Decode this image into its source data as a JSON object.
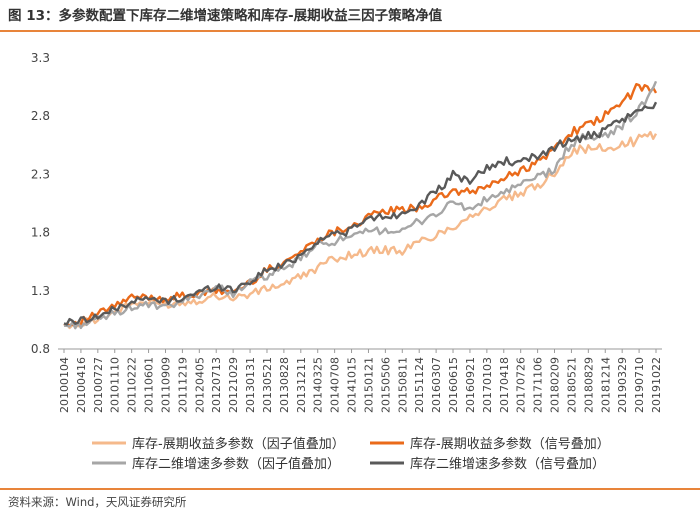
{
  "figure": {
    "title": "图 13：多参数配置下库存二维增速策略和库存-展期收益三因子策略净值",
    "source": "资料来源：Wind，天风证券研究所"
  },
  "chart_data": {
    "type": "line",
    "title": "",
    "xlabel": "",
    "ylabel": "",
    "ylim": [
      0.8,
      3.3
    ],
    "yticks": [
      0.8,
      1.3,
      1.8,
      2.3,
      2.8,
      3.3
    ],
    "grid": false,
    "legend_position": "bottom",
    "x_tick_labels": [
      "20100104",
      "20100416",
      "20100727",
      "20101110",
      "20110222",
      "20110601",
      "20110909",
      "20111219",
      "20120405",
      "20120713",
      "20121029",
      "20130131",
      "20130521",
      "20130828",
      "20131211",
      "20140325",
      "20140708",
      "20141015",
      "20150121",
      "20150506",
      "20150811",
      "20151124",
      "20160307",
      "20160615",
      "20160921",
      "20170103",
      "20170418",
      "20170726",
      "20171106",
      "20180209",
      "20180521",
      "20180829",
      "20181214",
      "20190329",
      "20190710",
      "20191022"
    ],
    "series": [
      {
        "name": "库存-展期收益多参数（因子值叠加）",
        "color": "#f5b98b",
        "values": [
          1.0,
          1.02,
          1.06,
          1.12,
          1.19,
          1.2,
          1.18,
          1.2,
          1.22,
          1.26,
          1.24,
          1.27,
          1.32,
          1.36,
          1.42,
          1.5,
          1.58,
          1.61,
          1.64,
          1.65,
          1.64,
          1.72,
          1.78,
          1.85,
          1.95,
          2.0,
          2.08,
          2.13,
          2.2,
          2.32,
          2.5,
          2.52,
          2.52,
          2.55,
          2.6,
          2.65
        ]
      },
      {
        "name": "库存-展期收益多参数（信号叠加）",
        "color": "#ea6a1a",
        "values": [
          1.0,
          1.04,
          1.1,
          1.17,
          1.24,
          1.25,
          1.23,
          1.26,
          1.27,
          1.3,
          1.29,
          1.37,
          1.48,
          1.55,
          1.63,
          1.75,
          1.81,
          1.86,
          1.93,
          1.99,
          1.99,
          2.02,
          2.08,
          2.16,
          2.14,
          2.2,
          2.26,
          2.34,
          2.4,
          2.52,
          2.67,
          2.72,
          2.8,
          2.92,
          3.06,
          3.0
        ]
      },
      {
        "name": "库存二维增速多参数（因子值叠加）",
        "color": "#a6a6a6",
        "values": [
          1.0,
          1.01,
          1.05,
          1.11,
          1.16,
          1.18,
          1.15,
          1.21,
          1.27,
          1.33,
          1.28,
          1.37,
          1.43,
          1.48,
          1.58,
          1.69,
          1.73,
          1.75,
          1.81,
          1.83,
          1.8,
          1.9,
          1.96,
          2.06,
          2.0,
          2.08,
          2.15,
          2.2,
          2.28,
          2.34,
          2.57,
          2.63,
          2.62,
          2.73,
          2.85,
          3.1
        ]
      },
      {
        "name": "库存二维增速多参数（信号叠加）",
        "color": "#595959",
        "values": [
          1.02,
          1.05,
          1.08,
          1.14,
          1.21,
          1.23,
          1.21,
          1.24,
          1.29,
          1.34,
          1.31,
          1.38,
          1.48,
          1.52,
          1.61,
          1.73,
          1.79,
          1.82,
          1.92,
          1.94,
          1.96,
          2.05,
          2.14,
          2.29,
          2.25,
          2.35,
          2.42,
          2.39,
          2.46,
          2.54,
          2.59,
          2.63,
          2.66,
          2.77,
          2.83,
          2.92
        ]
      }
    ]
  }
}
